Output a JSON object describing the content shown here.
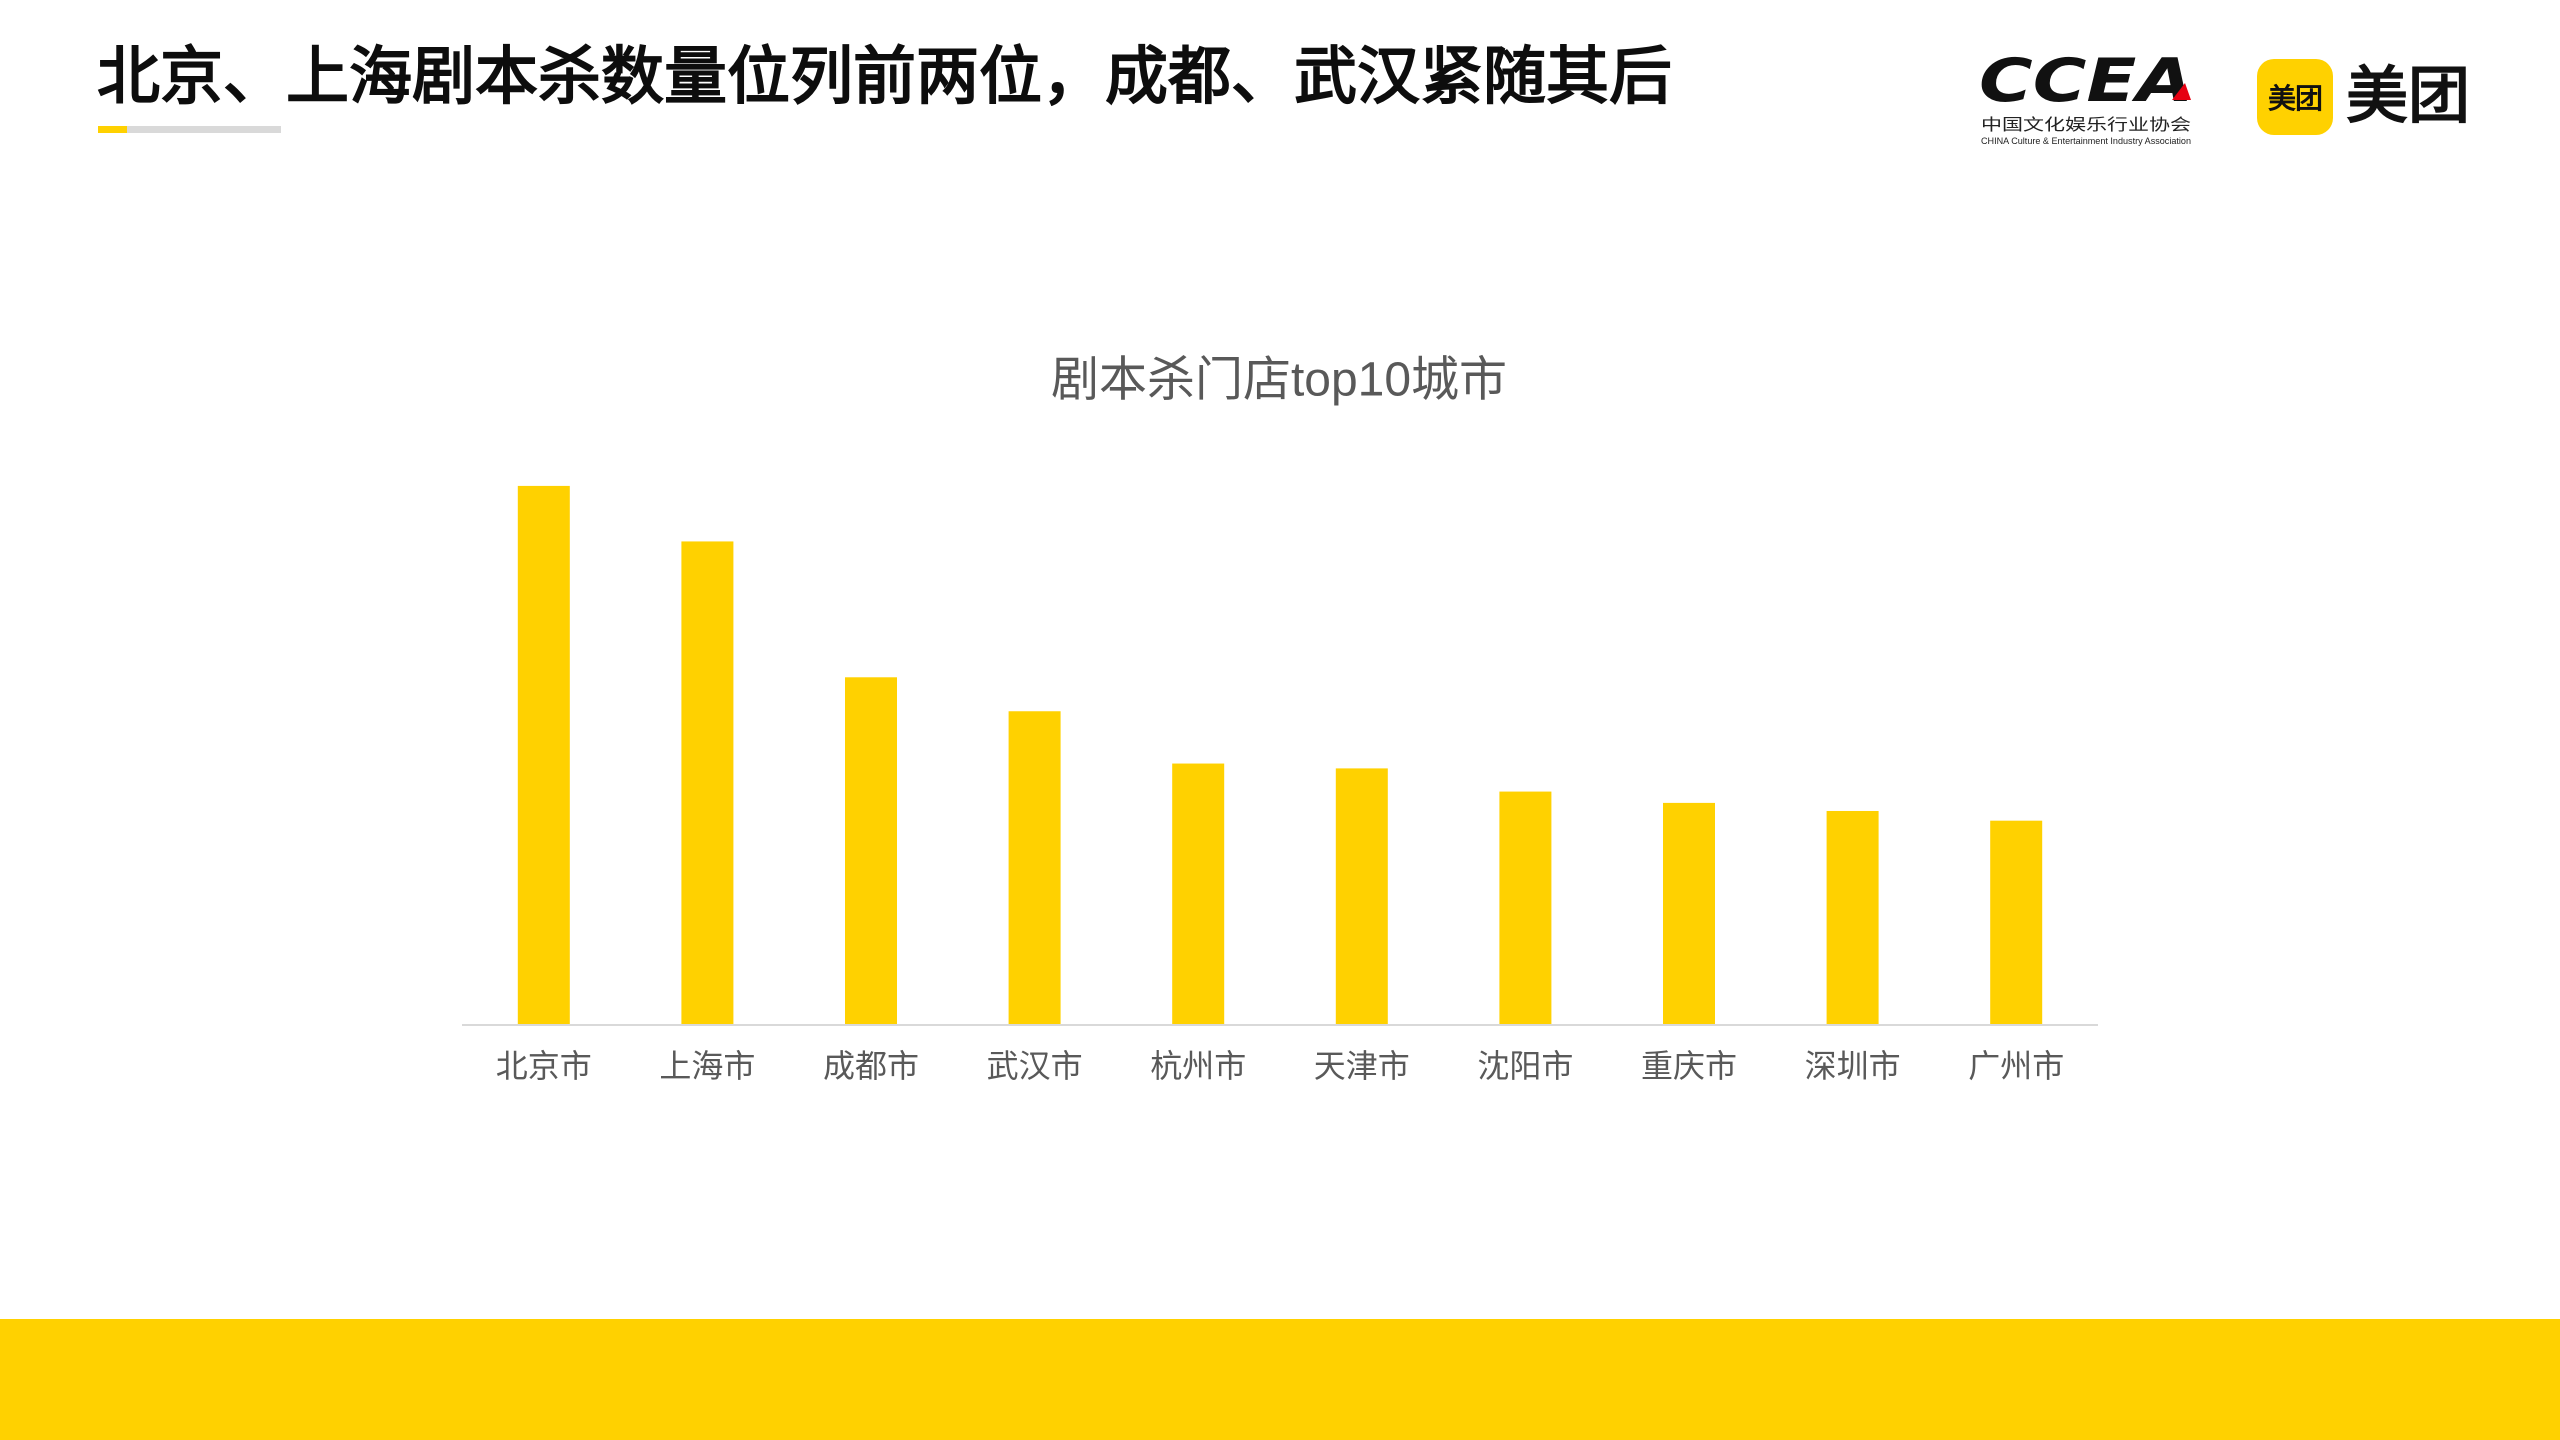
{
  "slide": {
    "title": "北京、上海剧本杀数量位列前两位，成都、武汉紧随其后"
  },
  "logos": {
    "ccea": {
      "wordmark": "CCEA",
      "name_cn": "中国文化娱乐行业协会",
      "name_en": "CHINA Culture & Entertainment Industry Association"
    },
    "meituan": {
      "badge_text": "美团",
      "wordmark": "美团"
    }
  },
  "theme": {
    "accent_yellow": "#FFD100",
    "title_rule_gray": "#D9D9D9",
    "ccea_red": "#E60012",
    "chart_text_gray": "#595959"
  },
  "chart_data": {
    "type": "bar",
    "title": "剧本杀门店top10城市",
    "categories": [
      "北京市",
      "上海市",
      "成都市",
      "武汉市",
      "杭州市",
      "天津市",
      "沈阳市",
      "重庆市",
      "深圳市",
      "广州市"
    ],
    "values": [
      100,
      89.7,
      64.5,
      58.2,
      48.5,
      47.6,
      43.3,
      41.2,
      39.7,
      37.9
    ],
    "ylim": [
      0,
      110
    ],
    "y_axis_visible": false,
    "grid": false,
    "legend": "none",
    "bar_color": "#FFD100"
  }
}
